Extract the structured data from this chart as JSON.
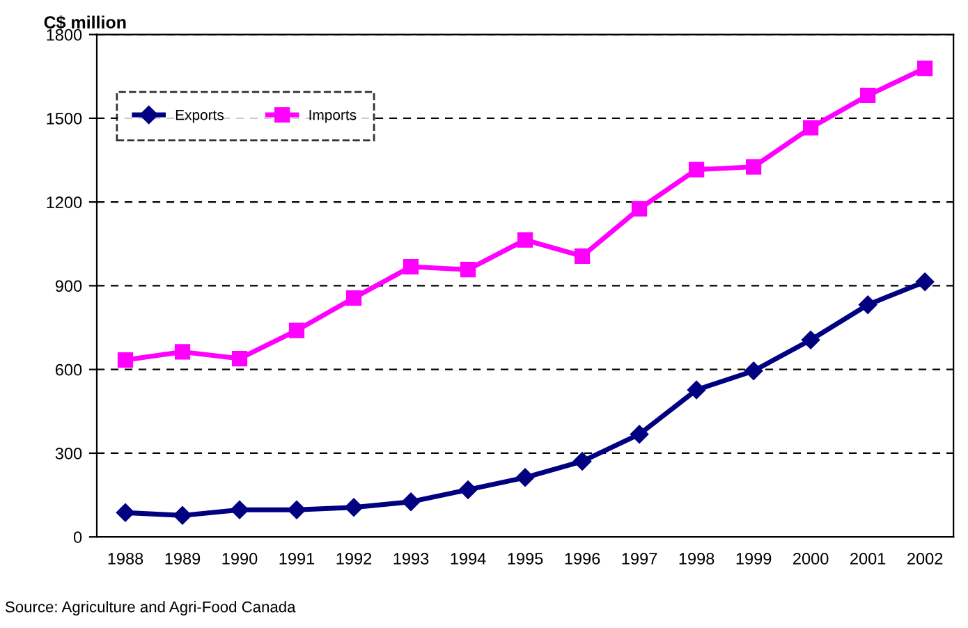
{
  "chart_data": {
    "type": "line",
    "ylabel": "C$ million",
    "categories": [
      "1988",
      "1989",
      "1990",
      "1991",
      "1992",
      "1993",
      "1994",
      "1995",
      "1996",
      "1997",
      "1998",
      "1999",
      "2000",
      "2001",
      "2002"
    ],
    "series": [
      {
        "name": "Exports",
        "color": "#000080",
        "marker": "diamond",
        "values": [
          87,
          77,
          97,
          97,
          106,
          126,
          169,
          213,
          271,
          368,
          527,
          595,
          706,
          832,
          914
        ]
      },
      {
        "name": "Imports",
        "color": "#ff00ff",
        "marker": "square",
        "values": [
          634,
          663,
          639,
          740,
          856,
          968,
          958,
          1064,
          1006,
          1176,
          1316,
          1326,
          1466,
          1582,
          1679
        ]
      }
    ],
    "ylim": [
      0,
      1800
    ],
    "yticks": [
      0,
      300,
      600,
      900,
      1200,
      1500,
      1800
    ],
    "grid": "y",
    "legend": "top left",
    "line_style": "solid",
    "annotations": [
      "Source: Agriculture and Agri-Food Canada"
    ]
  }
}
